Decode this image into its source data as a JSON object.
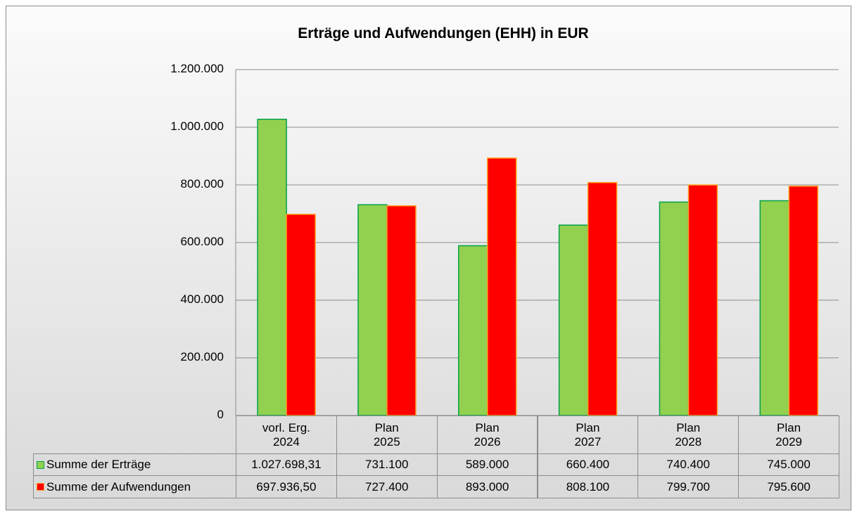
{
  "chart_data": {
    "type": "bar",
    "title": "Erträge und Aufwendungen (EHH) in EUR",
    "categories": [
      "vorl. Erg.\n2024",
      "Plan\n2025",
      "Plan\n2026",
      "Plan\n2027",
      "Plan\n2028",
      "Plan\n2029"
    ],
    "series": [
      {
        "name": "Summe der Erträge",
        "color": "#92d050",
        "stroke": "#00a04a",
        "values": [
          1027698.31,
          731100,
          589000,
          660400,
          740400,
          745000
        ],
        "value_labels": [
          "1.027.698,31",
          "731.100",
          "589.000",
          "660.400",
          "740.400",
          "745.000"
        ]
      },
      {
        "name": "Summe der Aufwendungen",
        "color": "#ff0000",
        "stroke": "#ffa020",
        "values": [
          697936.5,
          727400,
          893000,
          808100,
          799700,
          795600
        ],
        "value_labels": [
          "697.936,50",
          "727.400",
          "893.000",
          "808.100",
          "799.700",
          "795.600"
        ]
      }
    ],
    "ylim": [
      0,
      1200000
    ],
    "yticks": [
      0,
      {
        "value": 200000,
        "label": "200.000"
      },
      {
        "value": 400000,
        "label": "400.000"
      },
      {
        "value": 600000,
        "label": "600.000"
      },
      {
        "value": 800000,
        "label": "800.000"
      },
      {
        "value": 1000000,
        "label": "1.000.000"
      },
      {
        "value": 1200000,
        "label": "1.200.000"
      }
    ],
    "grid": true,
    "data_table": true
  }
}
